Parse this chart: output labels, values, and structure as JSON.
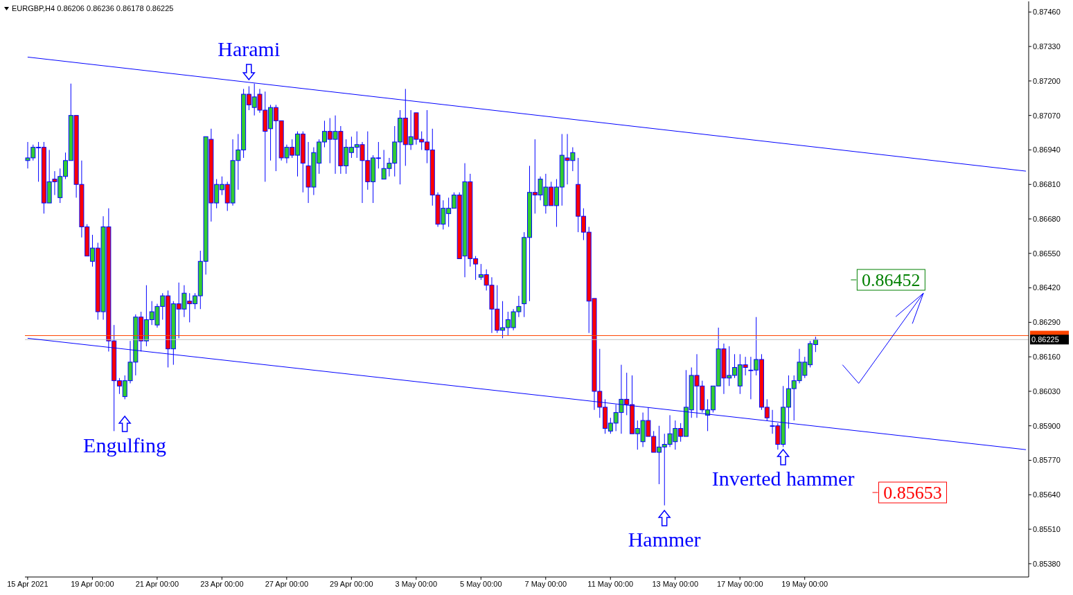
{
  "chart_data": {
    "type": "candlestick",
    "title": "EURGBP,H4  0.86206 0.86236 0.86178 0.86225",
    "categories": [
      "15 Apr 2021",
      null,
      null,
      null,
      null,
      null,
      null,
      null,
      null,
      null,
      null,
      null,
      "19 Apr 00:00",
      null,
      null,
      null,
      null,
      null,
      null,
      null,
      null,
      null,
      null,
      null,
      "21 Apr 00:00",
      null,
      null,
      null,
      null,
      null,
      null,
      null,
      null,
      null,
      null,
      null,
      "23 Apr 00:00",
      null,
      null,
      null,
      null,
      null,
      null,
      null,
      null,
      null,
      null,
      null,
      "27 Apr 00:00",
      null,
      null,
      null,
      null,
      null,
      null,
      null,
      null,
      null,
      null,
      null,
      "29 Apr 00:00",
      null,
      null,
      null,
      null,
      null,
      null,
      null,
      null,
      null,
      null,
      null,
      "3 May 00:00",
      null,
      null,
      null,
      null,
      null,
      null,
      null,
      null,
      null,
      null,
      null,
      "5 May 00:00",
      null,
      null,
      null,
      null,
      null,
      null,
      null,
      null,
      null,
      null,
      null,
      "7 May 00:00",
      null,
      null,
      null,
      null,
      null,
      null,
      null,
      null,
      null,
      null,
      null,
      "11 May 00:00",
      null,
      null,
      null,
      null,
      null,
      null,
      null,
      null,
      null,
      null,
      null,
      "13 May 00:00",
      null,
      null,
      null,
      null,
      null,
      null,
      null,
      null,
      null,
      null,
      null,
      "17 May 00:00",
      null,
      null,
      null,
      null,
      null,
      null,
      null,
      null,
      null,
      null,
      null,
      "19 May 00:00",
      null,
      null,
      null,
      null,
      null,
      null,
      null,
      null,
      null,
      null,
      null,
      null,
      null,
      null,
      null,
      null,
      null,
      null,
      null,
      null,
      null,
      null,
      null,
      null,
      null,
      null,
      null,
      null,
      null,
      null,
      null,
      null,
      null,
      null,
      null,
      null,
      null,
      null,
      null,
      null,
      null
    ],
    "ohlc": [
      [
        0.869,
        0.8697,
        0.8687,
        0.8691
      ],
      [
        0.8691,
        0.8696,
        0.869,
        0.8695
      ],
      [
        0.8695,
        0.8697,
        0.8682,
        0.8695
      ],
      [
        0.8695,
        0.8697,
        0.867,
        0.8674
      ],
      [
        0.8674,
        0.8694,
        0.8674,
        0.8682
      ],
      [
        0.8683,
        0.8686,
        0.8677,
        0.8682
      ],
      [
        0.8676,
        0.8687,
        0.8674,
        0.8684
      ],
      [
        0.8684,
        0.8693,
        0.8683,
        0.869
      ],
      [
        0.869,
        0.8719,
        0.869,
        0.8707
      ],
      [
        0.8707,
        0.8707,
        0.8676,
        0.8681
      ],
      [
        0.8681,
        0.869,
        0.8661,
        0.8665
      ],
      [
        0.8665,
        0.8666,
        0.8654,
        0.8654
      ],
      [
        0.8652,
        0.8662,
        0.865,
        0.8657
      ],
      [
        0.8657,
        0.8659,
        0.863,
        0.8633
      ],
      [
        0.8633,
        0.8669,
        0.863,
        0.8665
      ],
      [
        0.8665,
        0.8672,
        0.8618,
        0.8622
      ],
      [
        0.8622,
        0.8628,
        0.8588,
        0.8607
      ],
      [
        0.8607,
        0.8608,
        0.8602,
        0.8605
      ],
      [
        0.8601,
        0.8609,
        0.86,
        0.8607
      ],
      [
        0.8607,
        0.8622,
        0.8606,
        0.8614
      ],
      [
        0.8614,
        0.8632,
        0.8609,
        0.8631
      ],
      [
        0.8631,
        0.8633,
        0.8618,
        0.8622
      ],
      [
        0.8622,
        0.8643,
        0.862,
        0.863
      ],
      [
        0.863,
        0.8637,
        0.8628,
        0.8633
      ],
      [
        0.8628,
        0.8636,
        0.8627,
        0.8635
      ],
      [
        0.8635,
        0.864,
        0.863,
        0.8639
      ],
      [
        0.8639,
        0.8641,
        0.8612,
        0.8619
      ],
      [
        0.8619,
        0.8637,
        0.8613,
        0.8636
      ],
      [
        0.8636,
        0.8644,
        0.8623,
        0.8634
      ],
      [
        0.8634,
        0.8643,
        0.8631,
        0.864
      ],
      [
        0.8637,
        0.864,
        0.8629,
        0.8636
      ],
      [
        0.8636,
        0.864,
        0.8634,
        0.8639
      ],
      [
        0.8639,
        0.8656,
        0.8634,
        0.8652
      ],
      [
        0.8652,
        0.8699,
        0.8647,
        0.8699
      ],
      [
        0.8698,
        0.8702,
        0.8667,
        0.8674
      ],
      [
        0.8674,
        0.8683,
        0.8672,
        0.8681
      ],
      [
        0.8679,
        0.8684,
        0.8677,
        0.8681
      ],
      [
        0.8681,
        0.8682,
        0.8671,
        0.8674
      ],
      [
        0.8674,
        0.8698,
        0.8673,
        0.869
      ],
      [
        0.869,
        0.87,
        0.8679,
        0.8694
      ],
      [
        0.8694,
        0.8717,
        0.8691,
        0.8715
      ],
      [
        0.8715,
        0.8718,
        0.8709,
        0.8711
      ],
      [
        0.871,
        0.8719,
        0.8707,
        0.8714
      ],
      [
        0.8715,
        0.8717,
        0.8708,
        0.8709
      ],
      [
        0.8709,
        0.8716,
        0.8682,
        0.8701
      ],
      [
        0.8702,
        0.8711,
        0.869,
        0.871
      ],
      [
        0.871,
        0.8711,
        0.8686,
        0.8705
      ],
      [
        0.8705,
        0.8705,
        0.869,
        0.8691
      ],
      [
        0.8691,
        0.8696,
        0.8689,
        0.8695
      ],
      [
        0.8695,
        0.8698,
        0.8691,
        0.8692
      ],
      [
        0.8692,
        0.8701,
        0.8684,
        0.87
      ],
      [
        0.87,
        0.8701,
        0.8678,
        0.8689
      ],
      [
        0.8688,
        0.8697,
        0.8674,
        0.868
      ],
      [
        0.868,
        0.8695,
        0.8677,
        0.8693
      ],
      [
        0.8689,
        0.8698,
        0.8685,
        0.8697
      ],
      [
        0.8697,
        0.8705,
        0.8695,
        0.8701
      ],
      [
        0.8701,
        0.8706,
        0.8689,
        0.8698
      ],
      [
        0.8698,
        0.8707,
        0.8685,
        0.8701
      ],
      [
        0.8701,
        0.8703,
        0.8685,
        0.8688
      ],
      [
        0.8688,
        0.8698,
        0.8685,
        0.8695
      ],
      [
        0.8693,
        0.8699,
        0.8691,
        0.8695
      ],
      [
        0.8695,
        0.8701,
        0.8691,
        0.8696
      ],
      [
        0.8696,
        0.8697,
        0.8674,
        0.869
      ],
      [
        0.869,
        0.8701,
        0.8679,
        0.8682
      ],
      [
        0.8682,
        0.8692,
        0.8674,
        0.8691
      ],
      [
        0.8691,
        0.8697,
        0.8687,
        0.8691
      ],
      [
        0.8683,
        0.8694,
        0.8683,
        0.8687
      ],
      [
        0.8687,
        0.8691,
        0.8684,
        0.8689
      ],
      [
        0.8689,
        0.8703,
        0.8684,
        0.8697
      ],
      [
        0.8697,
        0.8709,
        0.8681,
        0.8706
      ],
      [
        0.8706,
        0.8717,
        0.8688,
        0.8696
      ],
      [
        0.8696,
        0.8709,
        0.8694,
        0.8699
      ],
      [
        0.8708,
        0.8708,
        0.8696,
        0.8698
      ],
      [
        0.8698,
        0.8701,
        0.8694,
        0.8697
      ],
      [
        0.8697,
        0.8709,
        0.8689,
        0.8694
      ],
      [
        0.8694,
        0.8702,
        0.8673,
        0.8677
      ],
      [
        0.8677,
        0.8678,
        0.8665,
        0.8666
      ],
      [
        0.8666,
        0.8675,
        0.8664,
        0.8672
      ],
      [
        0.867,
        0.8676,
        0.8665,
        0.8672
      ],
      [
        0.8672,
        0.8678,
        0.8672,
        0.8677
      ],
      [
        0.8677,
        0.8678,
        0.8653,
        0.8653
      ],
      [
        0.8654,
        0.8689,
        0.8646,
        0.8682
      ],
      [
        0.8682,
        0.8685,
        0.865,
        0.8653
      ],
      [
        0.8653,
        0.8654,
        0.8645,
        0.8651
      ],
      [
        0.8646,
        0.8651,
        0.8645,
        0.8647
      ],
      [
        0.8647,
        0.8649,
        0.8641,
        0.8643
      ],
      [
        0.8643,
        0.8646,
        0.8625,
        0.8634
      ],
      [
        0.8634,
        0.8643,
        0.8625,
        0.8626
      ],
      [
        0.8626,
        0.8637,
        0.8623,
        0.8627
      ],
      [
        0.8627,
        0.8633,
        0.8624,
        0.863
      ],
      [
        0.8627,
        0.8634,
        0.8626,
        0.8633
      ],
      [
        0.8633,
        0.8639,
        0.8631,
        0.8635
      ],
      [
        0.8636,
        0.8663,
        0.8631,
        0.8661
      ],
      [
        0.8661,
        0.8688,
        0.8637,
        0.8678
      ],
      [
        0.8678,
        0.8698,
        0.867,
        0.8677
      ],
      [
        0.8677,
        0.8684,
        0.8675,
        0.8683
      ],
      [
        0.8673,
        0.8685,
        0.867,
        0.868
      ],
      [
        0.868,
        0.8682,
        0.8673,
        0.8673
      ],
      [
        0.8673,
        0.8683,
        0.8665,
        0.868
      ],
      [
        0.868,
        0.87,
        0.8673,
        0.8692
      ],
      [
        0.8691,
        0.87,
        0.8681,
        0.869
      ],
      [
        0.869,
        0.8695,
        0.8686,
        0.8693
      ],
      [
        0.8681,
        0.8691,
        0.8663,
        0.8669
      ],
      [
        0.8669,
        0.8672,
        0.866,
        0.8663
      ],
      [
        0.8663,
        0.8665,
        0.8625,
        0.8637
      ],
      [
        0.8638,
        0.8638,
        0.8596,
        0.8603
      ],
      [
        0.8603,
        0.8619,
        0.8593,
        0.8597
      ],
      [
        0.8597,
        0.86,
        0.8587,
        0.8589
      ],
      [
        0.8588,
        0.8593,
        0.8587,
        0.8591
      ],
      [
        0.8591,
        0.8598,
        0.8588,
        0.8595
      ],
      [
        0.8595,
        0.8613,
        0.8587,
        0.86
      ],
      [
        0.86,
        0.861,
        0.8594,
        0.8598
      ],
      [
        0.8598,
        0.8609,
        0.8587,
        0.8587
      ],
      [
        0.8587,
        0.8592,
        0.8581,
        0.8589
      ],
      [
        0.8584,
        0.8595,
        0.8582,
        0.8592
      ],
      [
        0.8592,
        0.8597,
        0.8586,
        0.8586
      ],
      [
        0.8586,
        0.8588,
        0.858,
        0.858
      ],
      [
        0.858,
        0.859,
        0.8568,
        0.8582
      ],
      [
        0.8582,
        0.8587,
        0.856,
        0.8583
      ],
      [
        0.8583,
        0.8594,
        0.8582,
        0.8587
      ],
      [
        0.8584,
        0.8592,
        0.8581,
        0.8589
      ],
      [
        0.8589,
        0.8591,
        0.8584,
        0.8586
      ],
      [
        0.8586,
        0.8611,
        0.8586,
        0.8597
      ],
      [
        0.8596,
        0.8612,
        0.8593,
        0.8609
      ],
      [
        0.8609,
        0.8617,
        0.8593,
        0.8605
      ],
      [
        0.8605,
        0.8607,
        0.8595,
        0.8596
      ],
      [
        0.8594,
        0.86,
        0.8588,
        0.8596
      ],
      [
        0.8596,
        0.8605,
        0.8595,
        0.8605
      ],
      [
        0.8605,
        0.8627,
        0.8605,
        0.8619
      ],
      [
        0.8619,
        0.8621,
        0.8602,
        0.8608
      ],
      [
        0.8608,
        0.862,
        0.8605,
        0.8609
      ],
      [
        0.8609,
        0.8617,
        0.8608,
        0.8612
      ],
      [
        0.8605,
        0.8617,
        0.8602,
        0.8613
      ],
      [
        0.8613,
        0.8616,
        0.8609,
        0.8612
      ],
      [
        0.8611,
        0.8616,
        0.86,
        0.8611
      ],
      [
        0.8611,
        0.8631,
        0.8609,
        0.8615
      ],
      [
        0.8615,
        0.8617,
        0.8596,
        0.8597
      ],
      [
        0.8597,
        0.86,
        0.8592,
        0.8593
      ],
      [
        0.859,
        0.8596,
        0.8587,
        0.859
      ],
      [
        0.859,
        0.8591,
        0.8581,
        0.8583
      ],
      [
        0.8583,
        0.8605,
        0.8582,
        0.8597
      ],
      [
        0.8597,
        0.8609,
        0.8589,
        0.8604
      ],
      [
        0.8604,
        0.8609,
        0.8592,
        0.8607
      ],
      [
        0.8607,
        0.8619,
        0.8606,
        0.8614
      ],
      [
        0.8609,
        0.8616,
        0.8608,
        0.8614
      ],
      [
        0.8613,
        0.8622,
        0.8612,
        0.8621
      ],
      [
        0.86206,
        0.86236,
        0.86178,
        0.86225
      ],
      null,
      null,
      null,
      null,
      null,
      null,
      null,
      null,
      null,
      null,
      null,
      null,
      null,
      null,
      null,
      null,
      null,
      null,
      null,
      null,
      null,
      null,
      null,
      null,
      null,
      null,
      null,
      null,
      null,
      null,
      null,
      null,
      null,
      null,
      null,
      null,
      null,
      null,
      null
    ],
    "series": [
      {
        "type": "line",
        "color": "#0000ff",
        "values": [
          0.8729,
          null,
          null,
          null,
          null,
          null,
          null,
          null,
          null,
          null,
          null,
          null,
          null,
          null,
          null,
          null,
          null,
          null,
          null,
          null,
          null,
          null,
          null,
          null,
          null,
          null,
          null,
          null,
          null,
          null,
          null,
          null,
          null,
          null,
          null,
          null,
          null,
          null,
          null,
          null,
          null,
          null,
          null,
          null,
          null,
          null,
          null,
          null,
          null,
          null,
          null,
          null,
          null,
          null,
          null,
          null,
          null,
          null,
          null,
          null,
          null,
          null,
          null,
          null,
          null,
          null,
          null,
          null,
          null,
          null,
          null,
          null,
          null,
          null,
          null,
          null,
          null,
          null,
          null,
          null,
          null,
          null,
          null,
          null,
          null,
          null,
          null,
          null,
          null,
          null,
          null,
          null,
          null,
          null,
          null,
          null,
          null,
          null,
          null,
          null,
          null,
          null,
          null,
          null,
          null,
          null,
          null,
          null,
          null,
          null,
          null,
          null,
          null,
          null,
          null,
          null,
          null,
          null,
          null,
          null,
          null,
          null,
          null,
          null,
          null,
          null,
          null,
          null,
          null,
          null,
          null,
          null,
          null,
          null,
          null,
          null,
          null,
          null,
          null,
          null,
          null,
          null,
          null,
          null,
          null,
          null,
          null,
          null,
          null,
          null,
          null,
          null,
          null,
          null,
          null,
          null,
          null,
          null,
          null,
          null,
          null,
          null,
          null,
          null,
          null,
          null,
          null,
          null,
          null,
          null,
          null,
          null,
          null,
          null,
          null,
          null,
          null,
          null,
          null,
          null,
          null,
          null,
          null,
          null,
          null,
          0.8686
        ]
      },
      {
        "type": "line",
        "color": "#0000ff",
        "values": [
          0.8623,
          null,
          null,
          null,
          null,
          null,
          null,
          null,
          null,
          null,
          null,
          null,
          null,
          null,
          null,
          null,
          null,
          null,
          null,
          null,
          null,
          null,
          null,
          null,
          null,
          null,
          null,
          null,
          null,
          null,
          null,
          null,
          null,
          null,
          null,
          null,
          null,
          null,
          null,
          null,
          null,
          null,
          null,
          null,
          null,
          null,
          null,
          null,
          null,
          null,
          null,
          null,
          null,
          null,
          null,
          null,
          null,
          null,
          null,
          null,
          null,
          null,
          null,
          null,
          null,
          null,
          null,
          null,
          null,
          null,
          null,
          null,
          null,
          null,
          null,
          null,
          null,
          null,
          null,
          null,
          null,
          null,
          null,
          null,
          null,
          null,
          null,
          null,
          null,
          null,
          null,
          null,
          null,
          null,
          null,
          null,
          null,
          null,
          null,
          null,
          null,
          null,
          null,
          null,
          null,
          null,
          null,
          null,
          null,
          null,
          null,
          null,
          null,
          null,
          null,
          null,
          null,
          null,
          null,
          null,
          null,
          null,
          null,
          null,
          null,
          null,
          null,
          null,
          null,
          null,
          null,
          null,
          null,
          null,
          null,
          null,
          null,
          null,
          null,
          null,
          null,
          null,
          null,
          null,
          null,
          null,
          null,
          null,
          null,
          null,
          null,
          null,
          null,
          null,
          null,
          null,
          null,
          null,
          null,
          null,
          null,
          null,
          null,
          null,
          null,
          null,
          null,
          null,
          null,
          null,
          null,
          null,
          null,
          null,
          null,
          null,
          null,
          null,
          null,
          null,
          null,
          null,
          null,
          null,
          null,
          0.8581
        ]
      },
      {
        "type": "line",
        "color": "#0000ff",
        "values": [
          null,
          null,
          null,
          null,
          null,
          null,
          null,
          null,
          null,
          null,
          null,
          null,
          null,
          null,
          null,
          null,
          null,
          null,
          null,
          null,
          null,
          null,
          null,
          null,
          null,
          null,
          null,
          null,
          null,
          null,
          null,
          null,
          null,
          null,
          null,
          null,
          null,
          null,
          null,
          null,
          null,
          null,
          null,
          null,
          null,
          null,
          null,
          null,
          null,
          null,
          null,
          null,
          null,
          null,
          null,
          null,
          null,
          null,
          null,
          null,
          null,
          null,
          null,
          null,
          null,
          null,
          null,
          null,
          null,
          null,
          null,
          null,
          null,
          null,
          null,
          null,
          null,
          null,
          null,
          null,
          null,
          null,
          null,
          null,
          null,
          null,
          null,
          null,
          null,
          null,
          null,
          null,
          null,
          null,
          null,
          null,
          null,
          null,
          null,
          null,
          null,
          null,
          null,
          null,
          null,
          null,
          null,
          null,
          null,
          null,
          null,
          null,
          null,
          null,
          null,
          null,
          null,
          null,
          null,
          null,
          null,
          null,
          null,
          null,
          null,
          null,
          null,
          null,
          null,
          null,
          null,
          null,
          null,
          null,
          null,
          null,
          null,
          null,
          null,
          null,
          null,
          null,
          null,
          null,
          null,
          null,
          null,
          null,
          null,
          null,
          null,
          0.8613,
          null,
          null,
          0.8606,
          null,
          null,
          null,
          null,
          null,
          null,
          null,
          null,
          null,
          null,
          null,
          0.864,
          null,
          null,
          null,
          null,
          null,
          null,
          null,
          null,
          null,
          null,
          null,
          null,
          null,
          null,
          null,
          null,
          null,
          null,
          null
        ]
      }
    ],
    "ylim": [
      0.8533,
      0.875
    ],
    "yticks": [
      {
        "value": 0.8538,
        "label": "0.85380"
      },
      {
        "value": 0.8551,
        "label": "0.85510"
      },
      {
        "value": 0.8564,
        "label": "0.85640"
      },
      {
        "value": 0.8577,
        "label": "0.85770"
      },
      {
        "value": 0.859,
        "label": "0.85900"
      },
      {
        "value": 0.8603,
        "label": "0.86030"
      },
      {
        "value": 0.8616,
        "label": "0.86160"
      },
      {
        "value": 0.8629,
        "label": "0.86290"
      },
      {
        "value": 0.8642,
        "label": "0.86420"
      },
      {
        "value": 0.8655,
        "label": "0.86550"
      },
      {
        "value": 0.8668,
        "label": "0.86680"
      },
      {
        "value": 0.8681,
        "label": "0.86810"
      },
      {
        "value": 0.8694,
        "label": "0.86940"
      },
      {
        "value": 0.8707,
        "label": "0.87070"
      },
      {
        "value": 0.872,
        "label": "0.87200"
      },
      {
        "value": 0.8733,
        "label": "0.87330"
      },
      {
        "value": 0.8746,
        "label": "0.87460"
      }
    ],
    "ref_lines": [
      {
        "axis": "y",
        "value": 0.8624,
        "color": "#ff4500"
      },
      {
        "axis": "y",
        "value": 0.86225,
        "label": "0.86225",
        "color": "#c0c0c0"
      }
    ],
    "annotations": [
      "Harami",
      "Engulfing",
      "Hammer",
      "Inverted hammer",
      "0.86452",
      "0.85653"
    ]
  }
}
